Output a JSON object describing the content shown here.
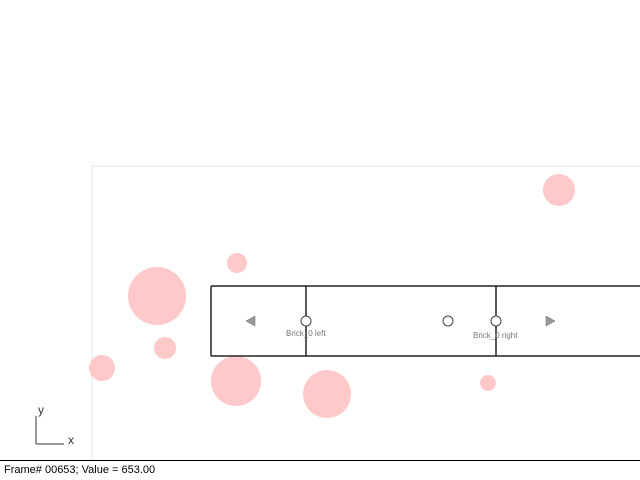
{
  "status": {
    "frame_text": "Frame# 00653;  Value = 653.00"
  },
  "axes": {
    "x_label": "x",
    "y_label": "y"
  },
  "brick": {
    "left_marker_label": "Brick_0 left",
    "right_marker_label": "Brick_0 right"
  },
  "colors": {
    "particle": "#ffc9c9",
    "line": "#222222",
    "frame_border": "#e6e6e6",
    "arrow_fill": "#999999"
  },
  "icons": {
    "left_arrow": "left-triangle-icon",
    "right_arrow": "right-triangle-icon",
    "handles": "circle-handle-icon"
  }
}
